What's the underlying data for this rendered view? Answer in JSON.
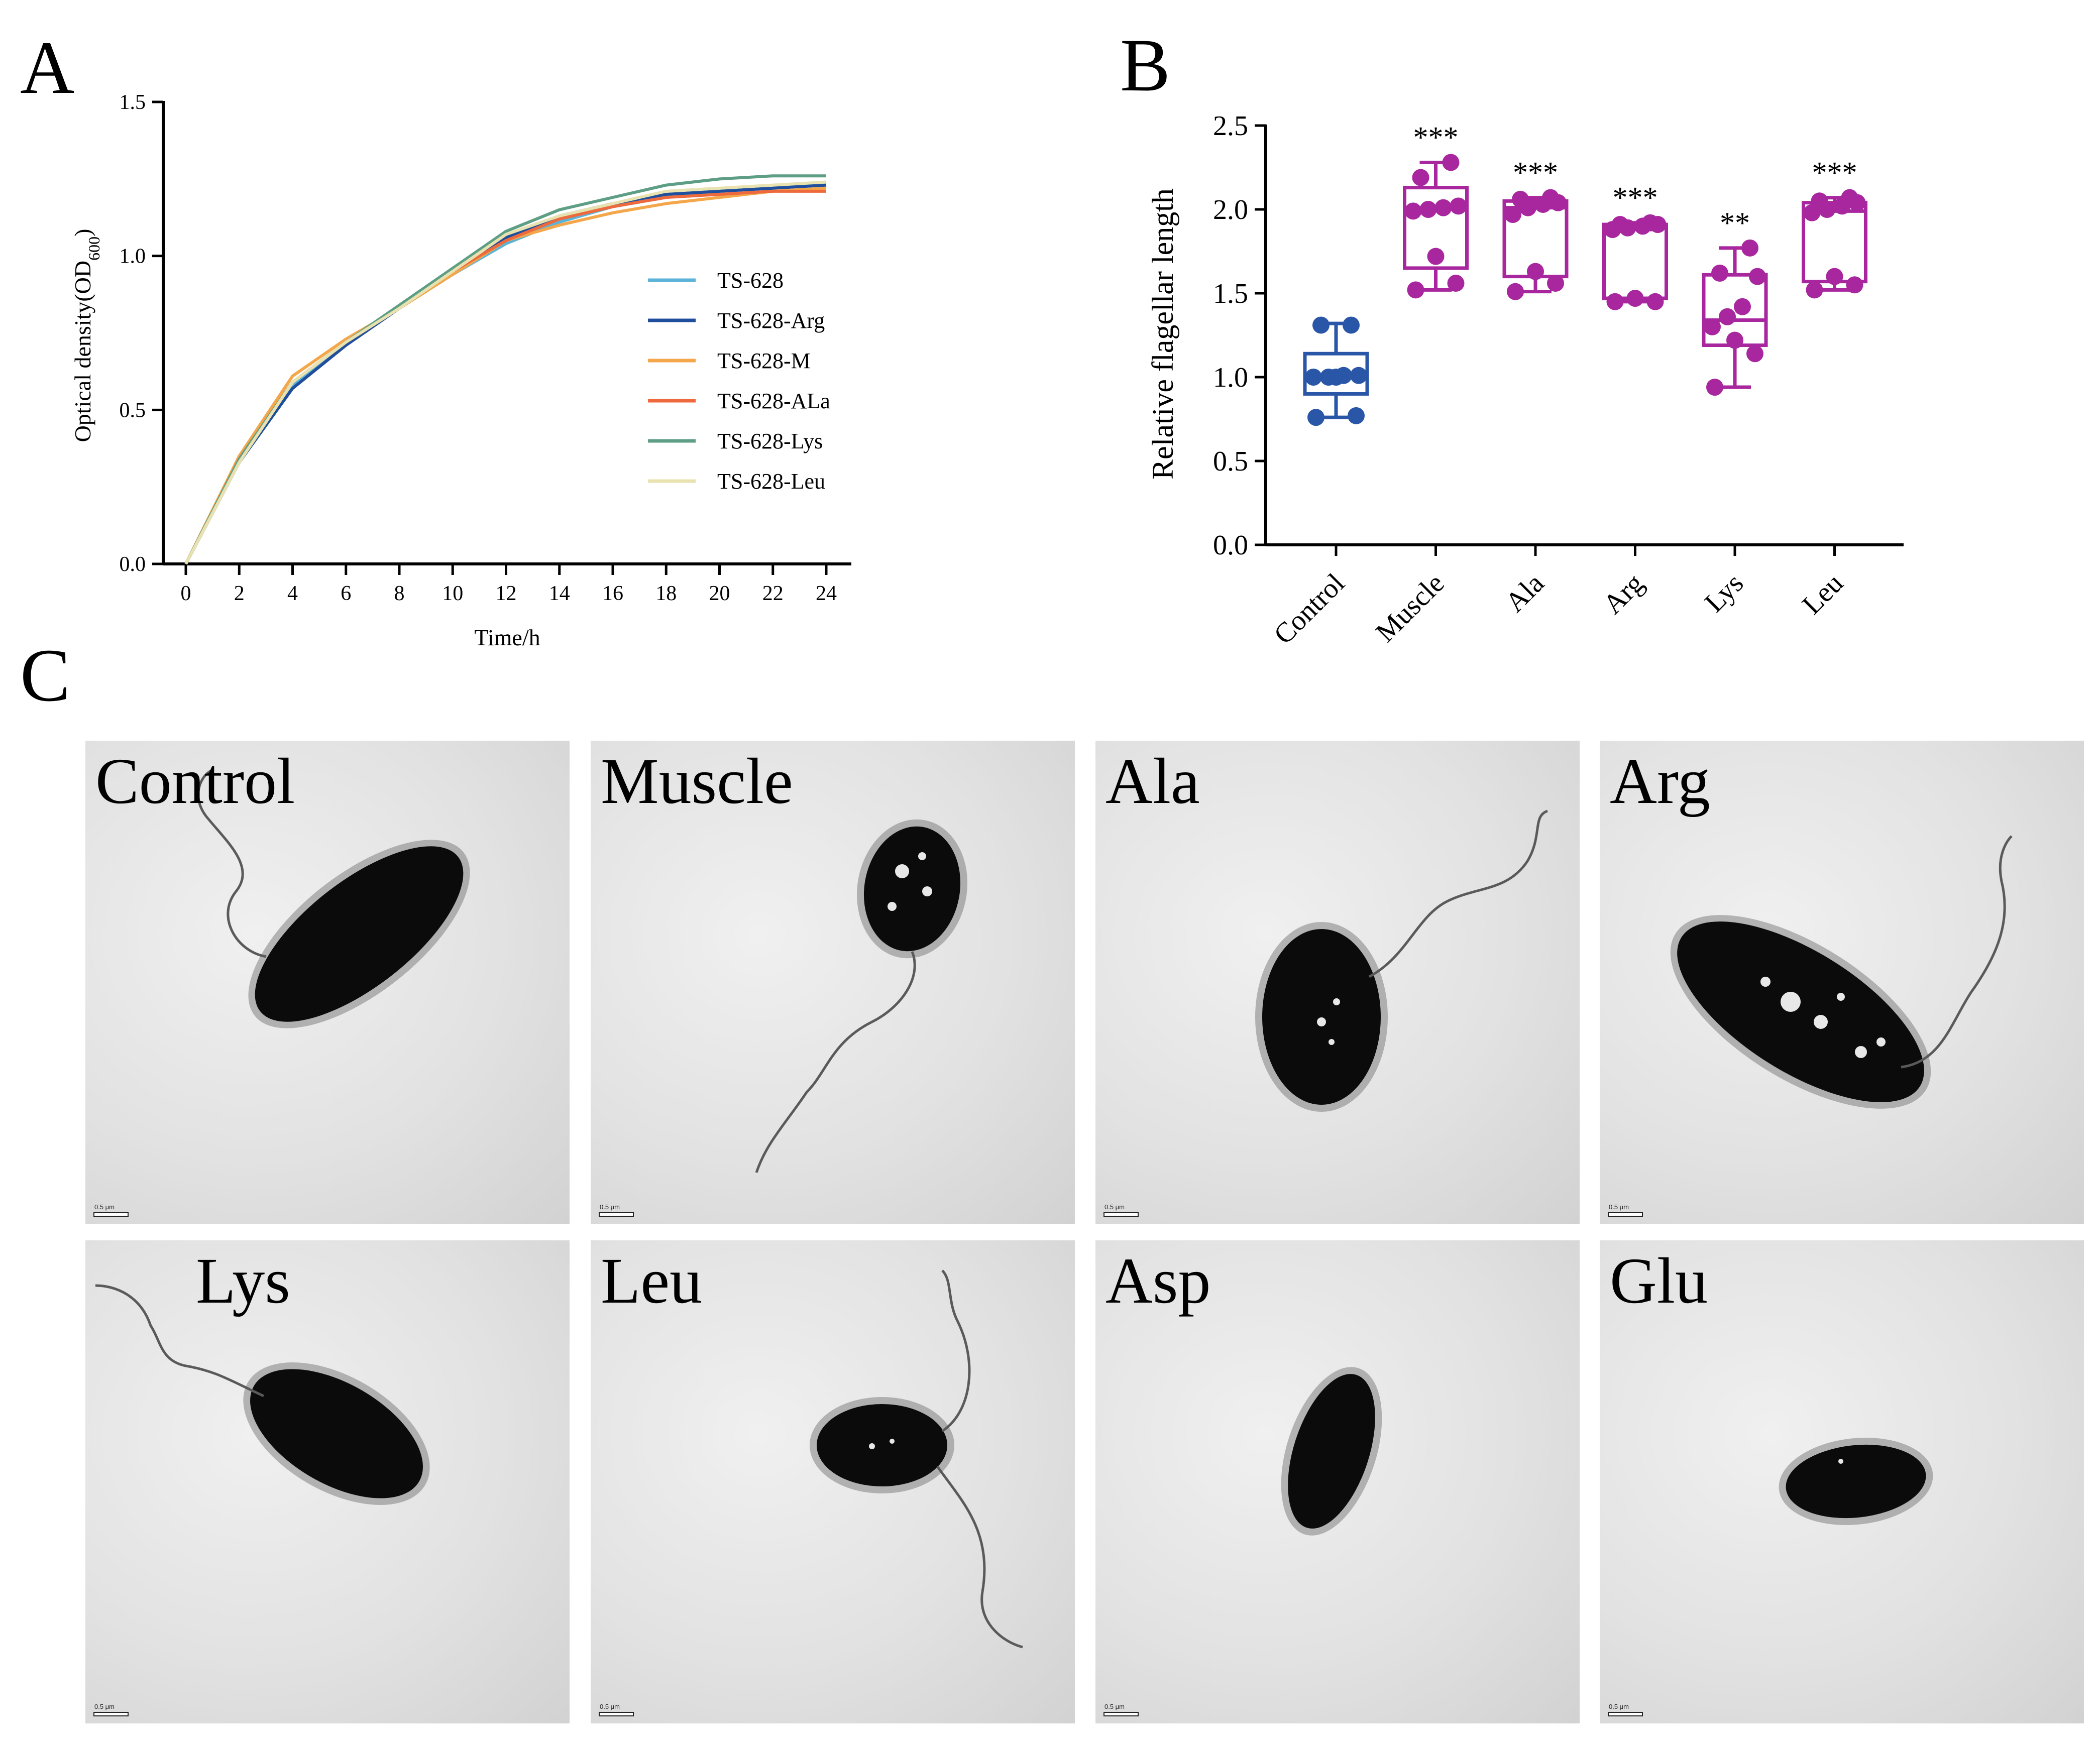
{
  "panels": {
    "a": "A",
    "b": "B",
    "c": "C"
  },
  "chart_data": [
    {
      "type": "line",
      "xlabel": "Time/h",
      "ylabel_main": "Optical density(OD",
      "ylabel_sub": "600",
      "ylabel_end": ")",
      "xlim": [
        0,
        24
      ],
      "ylim": [
        0,
        1.5
      ],
      "xticks": [
        0,
        2,
        4,
        6,
        8,
        10,
        12,
        14,
        16,
        18,
        20,
        22,
        24
      ],
      "yticks": [
        "0.0",
        "0.5",
        "1.0",
        "1.5"
      ],
      "legend_position": "right-middle",
      "x": [
        0,
        2,
        4,
        6,
        8,
        10,
        12,
        14,
        16,
        18,
        20,
        22,
        24
      ],
      "series": [
        {
          "name": "TS-628",
          "color": "#5bb3d9",
          "values": [
            0,
            0.33,
            0.58,
            0.72,
            0.83,
            0.94,
            1.04,
            1.11,
            1.16,
            1.19,
            1.21,
            1.22,
            1.24
          ]
        },
        {
          "name": "TS-628-Arg",
          "color": "#1f4e9c",
          "values": [
            0,
            0.33,
            0.57,
            0.71,
            0.83,
            0.95,
            1.06,
            1.13,
            1.17,
            1.2,
            1.21,
            1.22,
            1.23
          ]
        },
        {
          "name": "TS-628-M",
          "color": "#f4a64a",
          "values": [
            0,
            0.35,
            0.61,
            0.73,
            0.83,
            0.94,
            1.05,
            1.1,
            1.14,
            1.17,
            1.19,
            1.21,
            1.22
          ]
        },
        {
          "name": "TS-628-ALa",
          "color": "#ee6a3c",
          "values": [
            0,
            0.34,
            0.59,
            0.72,
            0.83,
            0.95,
            1.05,
            1.12,
            1.16,
            1.19,
            1.2,
            1.21,
            1.21
          ]
        },
        {
          "name": "TS-628-Lys",
          "color": "#5e9e85",
          "values": [
            0,
            0.34,
            0.59,
            0.72,
            0.84,
            0.96,
            1.08,
            1.15,
            1.19,
            1.23,
            1.25,
            1.26,
            1.26
          ]
        },
        {
          "name": "TS-628-Leu",
          "color": "#e8e2b0",
          "values": [
            0,
            0.33,
            0.59,
            0.72,
            0.83,
            0.95,
            1.07,
            1.13,
            1.17,
            1.21,
            1.22,
            1.23,
            1.24
          ]
        }
      ]
    },
    {
      "type": "box",
      "ylabel": "Relative flagellar length",
      "ylim": [
        0,
        2.5
      ],
      "yticks": [
        "0.0",
        "0.5",
        "1.0",
        "1.5",
        "2.0",
        "2.5"
      ],
      "categories": [
        "Control",
        "Muscle",
        "Ala",
        "Arg",
        "Lys",
        "Leu"
      ],
      "groups": [
        {
          "name": "Control",
          "color": "#2a56a8",
          "min": 0.76,
          "q1": 0.9,
          "median": 1.0,
          "q3": 1.14,
          "max": 1.32,
          "points": [
            0.76,
            0.77,
            1.0,
            1.0,
            1.0,
            1.01,
            1.01,
            1.31,
            1.31
          ],
          "stars": ""
        },
        {
          "name": "Muscle",
          "color": "#a8269e",
          "min": 1.52,
          "q1": 1.65,
          "median": 2.01,
          "q3": 2.13,
          "max": 2.28,
          "points": [
            1.52,
            1.56,
            1.72,
            1.99,
            2.0,
            2.01,
            2.02,
            2.19,
            2.28
          ],
          "stars": "***"
        },
        {
          "name": "Ala",
          "color": "#a8269e",
          "min": 1.51,
          "q1": 1.6,
          "median": 2.01,
          "q3": 2.05,
          "max": 2.07,
          "points": [
            1.51,
            1.56,
            1.63,
            1.97,
            2.01,
            2.03,
            2.04,
            2.06,
            2.07
          ],
          "stars": "***"
        },
        {
          "name": "Arg",
          "color": "#a8269e",
          "min": 1.45,
          "q1": 1.47,
          "median": 1.9,
          "q3": 1.91,
          "max": 1.92,
          "points": [
            1.45,
            1.45,
            1.47,
            1.88,
            1.89,
            1.9,
            1.91,
            1.91,
            1.92
          ],
          "stars": "***"
        },
        {
          "name": "Lys",
          "color": "#a8269e",
          "min": 0.94,
          "q1": 1.19,
          "median": 1.34,
          "q3": 1.61,
          "max": 1.77,
          "points": [
            0.94,
            1.14,
            1.22,
            1.3,
            1.36,
            1.42,
            1.6,
            1.62,
            1.77
          ],
          "stars": "**"
        },
        {
          "name": "Leu",
          "color": "#a8269e",
          "min": 1.52,
          "q1": 1.57,
          "median": 1.99,
          "q3": 2.04,
          "max": 2.07,
          "points": [
            1.52,
            1.55,
            1.6,
            1.98,
            2.0,
            2.02,
            2.04,
            2.05,
            2.07
          ],
          "stars": "***"
        }
      ]
    }
  ],
  "micrographs": [
    {
      "label": "Control",
      "scale": "0.5 μm"
    },
    {
      "label": "Muscle",
      "scale": "0.5 μm"
    },
    {
      "label": "Ala",
      "scale": "0.5 μm"
    },
    {
      "label": "Arg",
      "scale": "0.5 μm"
    },
    {
      "label": "Lys",
      "scale": "0.5 μm"
    },
    {
      "label": "Leu",
      "scale": "0.5 μm"
    },
    {
      "label": "Asp",
      "scale": "0.5 μm"
    },
    {
      "label": "Glu",
      "scale": "0.5 μm"
    }
  ]
}
